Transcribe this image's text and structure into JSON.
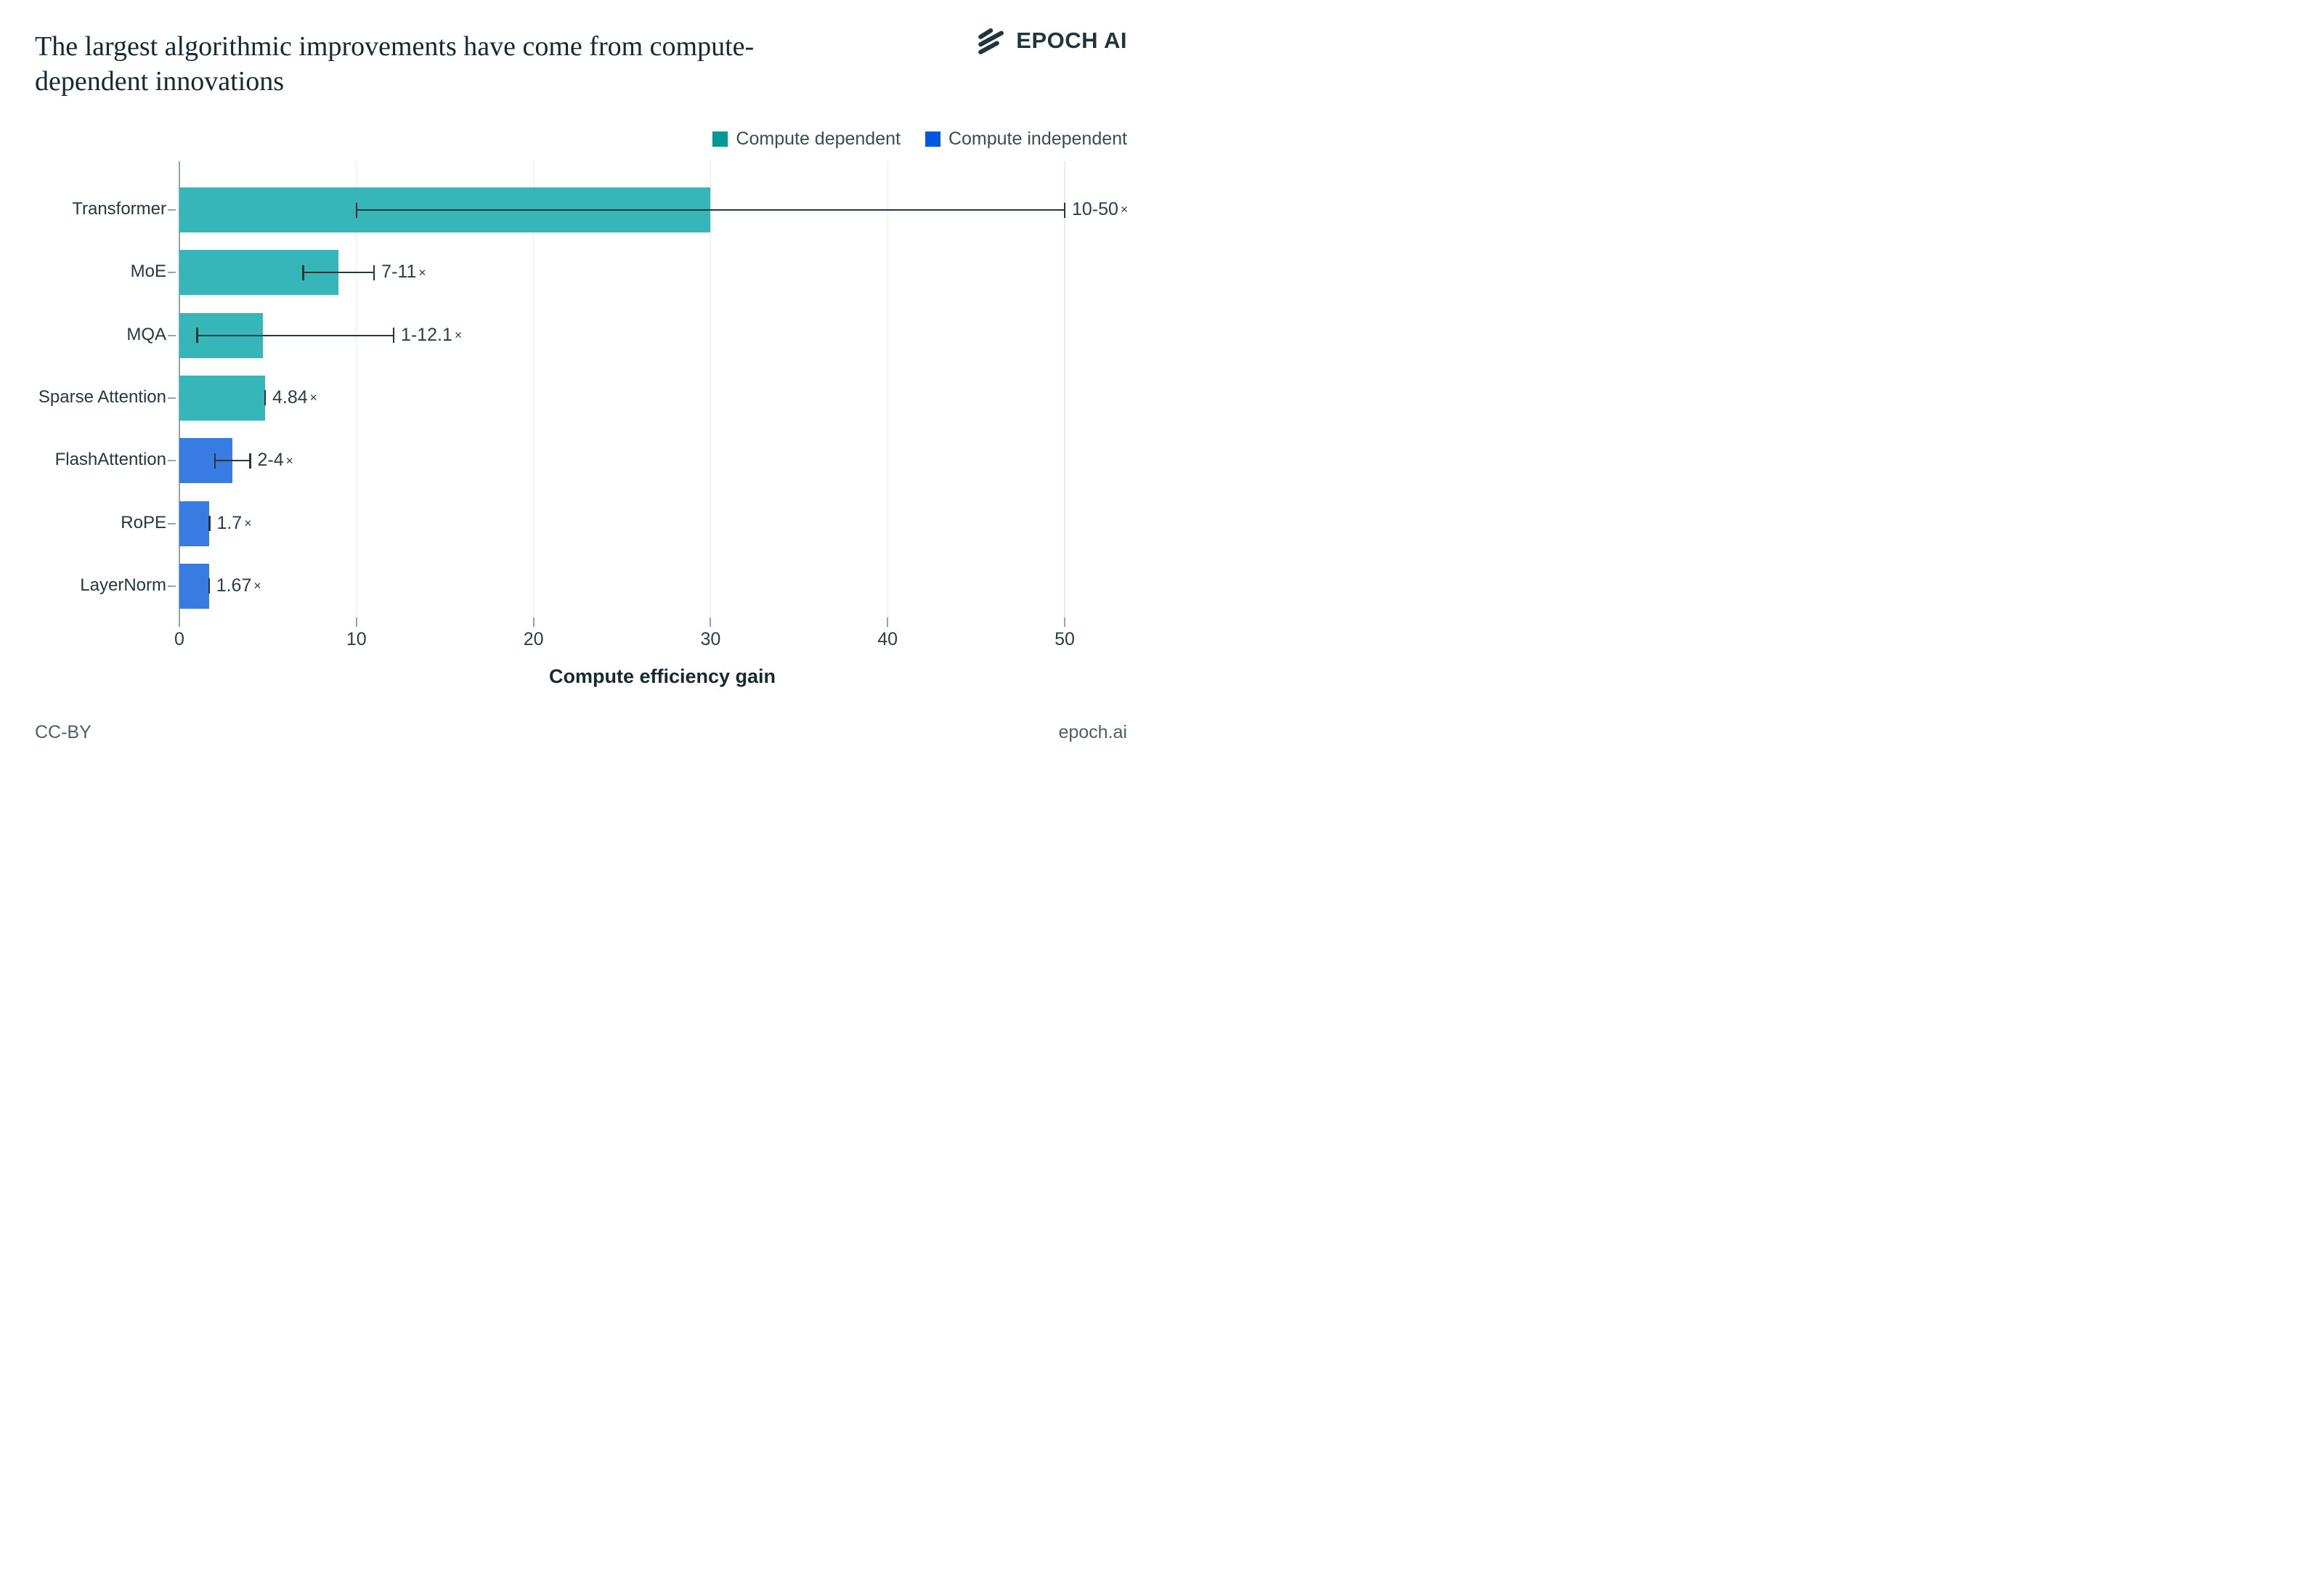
{
  "title": {
    "line1": "The largest algorithmic improvements have come from compute-",
    "line2": "dependent innovations"
  },
  "brand": {
    "wordmark": "EPOCH AI",
    "icon": "epoch-three-strokes",
    "color": "#20363c"
  },
  "footer": {
    "left": "CC-BY",
    "right": "epoch.ai"
  },
  "chart_data": {
    "type": "bar",
    "orientation": "horizontal",
    "title": "The largest algorithmic improvements have come from compute-dependent innovations",
    "xlabel": "Compute efficiency gain",
    "ylabel": "",
    "xlim": [
      0,
      50
    ],
    "xticks": [
      0,
      10,
      20,
      30,
      40,
      50
    ],
    "grid": "vertical-light",
    "legend_position": "top-right",
    "legend": [
      {
        "label": "Compute dependent",
        "swatch_color": "#009a94"
      },
      {
        "label": "Compute independent",
        "swatch_color": "#0058e0"
      }
    ],
    "categories": [
      "Transformer",
      "MoE",
      "MQA",
      "Sparse Attention",
      "FlashAttention",
      "RoPE",
      "LayerNorm"
    ],
    "bars": [
      {
        "label": "Transformer",
        "group": "Compute dependent",
        "color": "#36b6b8",
        "value": 30,
        "range": [
          10,
          50
        ],
        "annotation": "10-50×"
      },
      {
        "label": "MoE",
        "group": "Compute dependent",
        "color": "#36b6b8",
        "value": 9,
        "range": [
          7,
          11
        ],
        "annotation": "7-11×"
      },
      {
        "label": "MQA",
        "group": "Compute dependent",
        "color": "#36b6b8",
        "value": 4.7,
        "range": [
          1,
          12.1
        ],
        "annotation": "1-12.1×"
      },
      {
        "label": "Sparse Attention",
        "group": "Compute dependent",
        "color": "#36b6b8",
        "value": 4.84,
        "range": null,
        "annotation": "4.84×"
      },
      {
        "label": "FlashAttention",
        "group": "Compute independent",
        "color": "#377be3",
        "value": 3,
        "range": [
          2,
          4
        ],
        "annotation": "2-4×"
      },
      {
        "label": "RoPE",
        "group": "Compute independent",
        "color": "#377be3",
        "value": 1.7,
        "range": null,
        "annotation": "1.7×"
      },
      {
        "label": "LayerNorm",
        "group": "Compute independent",
        "color": "#377be3",
        "value": 1.67,
        "range": null,
        "annotation": "1.67×"
      }
    ]
  }
}
